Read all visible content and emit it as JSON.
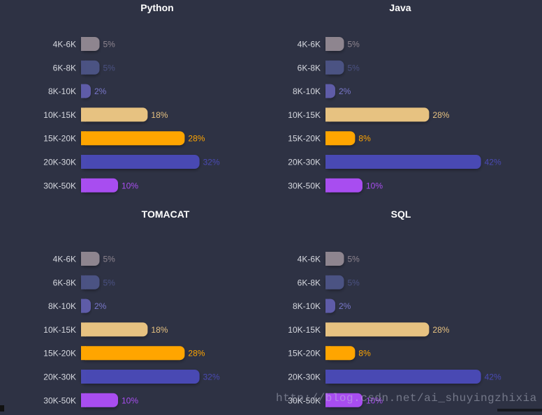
{
  "chart_data": [
    {
      "type": "bar",
      "orientation": "horizontal",
      "title": "Python",
      "categories": [
        "4K-6K",
        "6K-8K",
        "8K-10K",
        "10K-15K",
        "15K-20K",
        "20K-30K",
        "30K-50K"
      ],
      "values": [
        5,
        5,
        2,
        18,
        28,
        32,
        10
      ],
      "value_suffix": "%",
      "colors": [
        "#8e858f",
        "#4b5283",
        "#5e5ca8",
        "#e7c281",
        "#ffa500",
        "#4a4ab3",
        "#a84ef0"
      ],
      "label_colors": [
        "#8e858f",
        "#4b5283",
        "#7a78cc",
        "#e7c281",
        "#ffa500",
        "#4a4ab3",
        "#a84ef0"
      ],
      "xlim": [
        0,
        42
      ]
    },
    {
      "type": "bar",
      "orientation": "horizontal",
      "title": "Java",
      "categories": [
        "4K-6K",
        "6K-8K",
        "8K-10K",
        "10K-15K",
        "15K-20K",
        "20K-30K",
        "30K-50K"
      ],
      "values": [
        5,
        5,
        2,
        28,
        8,
        42,
        10
      ],
      "value_suffix": "%",
      "colors": [
        "#8e858f",
        "#4b5283",
        "#5e5ca8",
        "#e7c281",
        "#ffa500",
        "#4a4ab3",
        "#a84ef0"
      ],
      "label_colors": [
        "#8e858f",
        "#4b5283",
        "#7a78cc",
        "#e7c281",
        "#ffa500",
        "#4a4ab3",
        "#a84ef0"
      ],
      "xlim": [
        0,
        42
      ]
    },
    {
      "type": "bar",
      "orientation": "horizontal",
      "title": "TOMACAT",
      "categories": [
        "4K-6K",
        "6K-8K",
        "8K-10K",
        "10K-15K",
        "15K-20K",
        "20K-30K",
        "30K-50K"
      ],
      "values": [
        5,
        5,
        2,
        18,
        28,
        32,
        10
      ],
      "value_suffix": "%",
      "colors": [
        "#8e858f",
        "#4b5283",
        "#5e5ca8",
        "#e7c281",
        "#ffa500",
        "#4a4ab3",
        "#a84ef0"
      ],
      "label_colors": [
        "#8e858f",
        "#4b5283",
        "#7a78cc",
        "#e7c281",
        "#ffa500",
        "#4a4ab3",
        "#a84ef0"
      ],
      "xlim": [
        0,
        42
      ]
    },
    {
      "type": "bar",
      "orientation": "horizontal",
      "title": "SQL",
      "categories": [
        "4K-6K",
        "6K-8K",
        "8K-10K",
        "10K-15K",
        "15K-20K",
        "20K-30K",
        "30K-50K"
      ],
      "values": [
        5,
        5,
        2,
        28,
        8,
        42,
        10
      ],
      "value_suffix": "%",
      "colors": [
        "#8e858f",
        "#4b5283",
        "#5e5ca8",
        "#e7c281",
        "#ffa500",
        "#4a4ab3",
        "#a84ef0"
      ],
      "label_colors": [
        "#8e858f",
        "#4b5283",
        "#7a78cc",
        "#e7c281",
        "#ffa500",
        "#4a4ab3",
        "#a84ef0"
      ],
      "xlim": [
        0,
        42
      ]
    }
  ],
  "theme": {
    "background": "#2e3244",
    "title_color": "#ffffff",
    "category_label_color": "#d7d9e0"
  },
  "watermark": "http://blog.csdn.net/ai_shuyingzhixia"
}
